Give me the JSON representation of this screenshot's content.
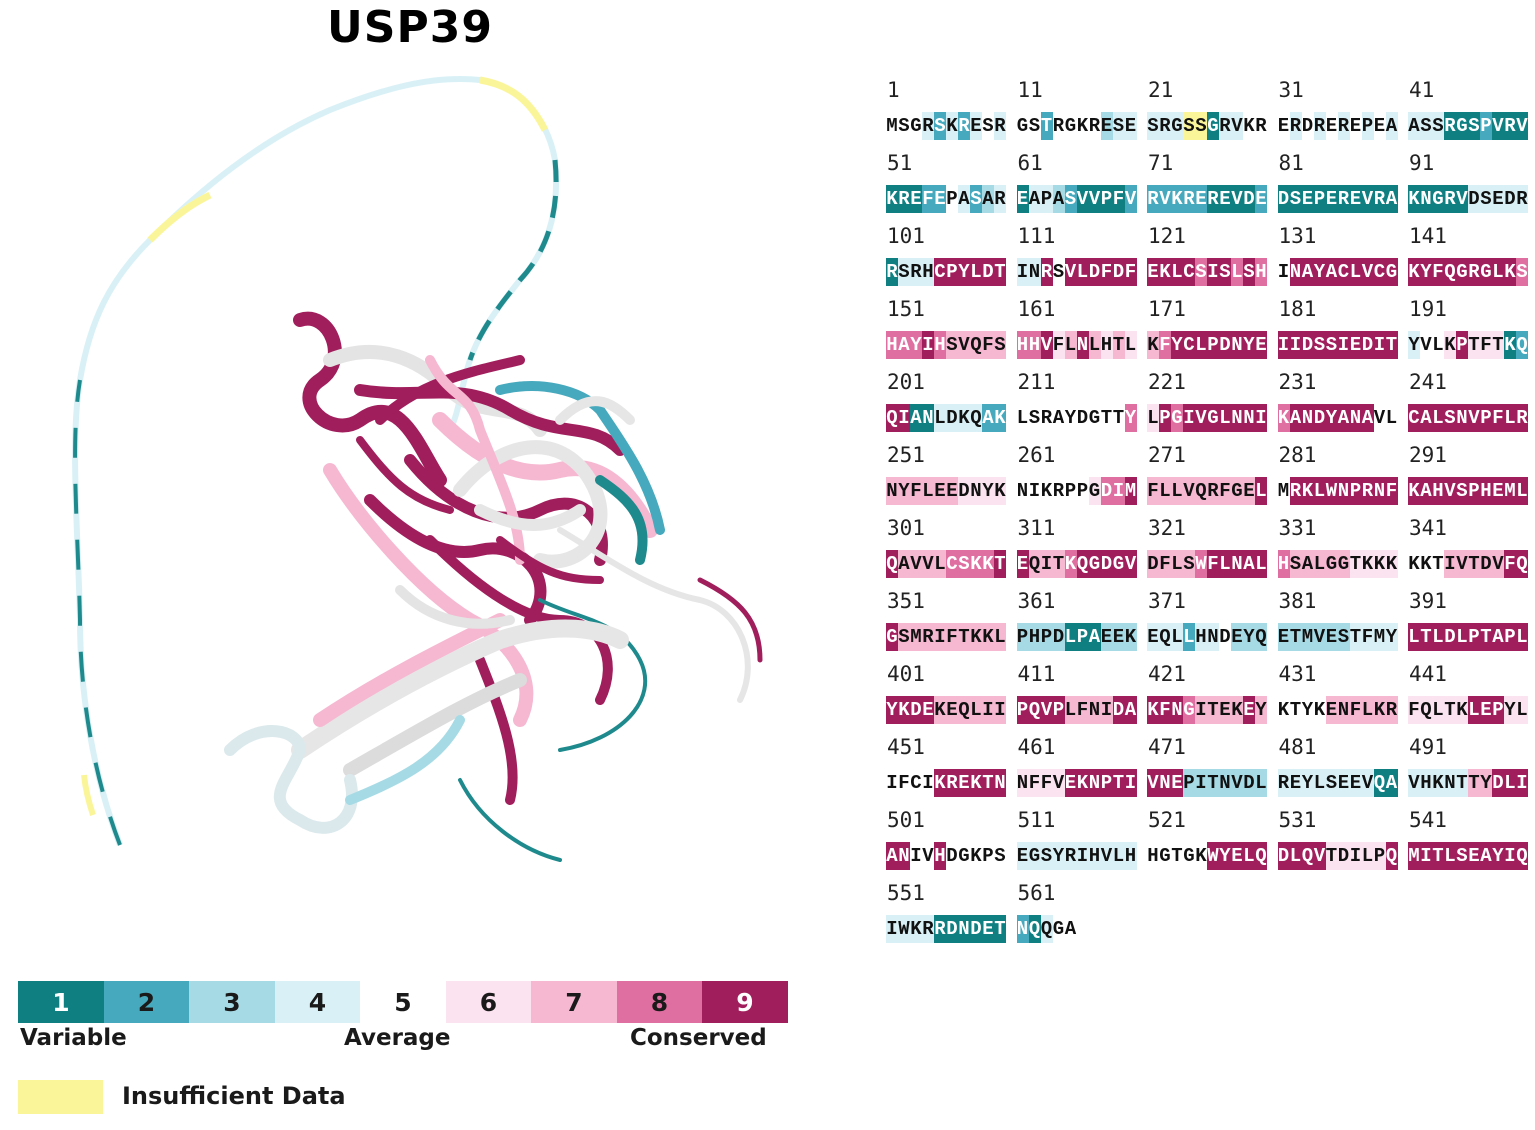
{
  "title": "USP39",
  "colors": {
    "1": "#0f7f82",
    "2": "#47a9bd",
    "3": "#a6dbe6",
    "4": "#d9f1f6",
    "5": "#ffffff",
    "6": "#fbe3ef",
    "7": "#f6b8d1",
    "8": "#e06fa1",
    "9": "#a11e5c",
    "insufficient": "#fbf59a"
  },
  "legend": {
    "scale": [
      "1",
      "2",
      "3",
      "4",
      "5",
      "6",
      "7",
      "8",
      "9"
    ],
    "variable_label": "Variable",
    "average_label": "Average",
    "conserved_label": "Conserved",
    "insufficient_label": "Insufficient Data"
  },
  "sequence_blocks": [
    {
      "start": "1",
      "seq": "MSGRSKRESR",
      "grades": "5554242454"
    },
    {
      "start": "11",
      "seq": "GSTRGKRESE",
      "grades": "5525555344"
    },
    {
      "start": "21",
      "seq": "SRGSSGRVKR",
      "grades": "444YY14455"
    },
    {
      "start": "31",
      "seq": "ERDREREPEA",
      "grades": "5454545454"
    },
    {
      "start": "41",
      "seq": "ASSRGSPVRV",
      "grades": "4441112111"
    },
    {
      "start": "51",
      "seq": "KREFEPASAR",
      "grades": "1112254234"
    },
    {
      "start": "61",
      "seq": "EAPASVVPFV",
      "grades": "1443211112"
    },
    {
      "start": "71",
      "seq": "RVKREREVDE",
      "grades": "2222211112"
    },
    {
      "start": "81",
      "seq": "DSEPEREVRA",
      "grades": "1111111111"
    },
    {
      "start": "91",
      "seq": "KNGRVDSEDR",
      "grades": "1111144444"
    },
    {
      "start": "101",
      "seq": "RSRHCPYLDT",
      "grades": "1444999999"
    },
    {
      "start": "111",
      "seq": "INRSVLDFDF",
      "grades": "4495999999"
    },
    {
      "start": "121",
      "seq": "EKLCSISLSH",
      "grades": "9999899898"
    },
    {
      "start": "131",
      "seq": "INAYACLVCG",
      "grades": "5999999999"
    },
    {
      "start": "141",
      "seq": "KYFQGRGLKS",
      "grades": "9999999998"
    },
    {
      "start": "151",
      "seq": "HAYIHSVQFS",
      "grades": "8889877777"
    },
    {
      "start": "161",
      "seq": "HHVFLNLHTL",
      "grades": "8896797676"
    },
    {
      "start": "171",
      "seq": "KFYCLPDNYE",
      "grades": "7899999999"
    },
    {
      "start": "181",
      "seq": "IIDSSIEDIT",
      "grades": "9999999999"
    },
    {
      "start": "191",
      "seq": "YVLKPTFTKQ",
      "grades": "4556966612"
    },
    {
      "start": "201",
      "seq": "QIANLDKQAK",
      "grades": "9911444422"
    },
    {
      "start": "211",
      "seq": "LSRAYDGTTY",
      "grades": "5555555558"
    },
    {
      "start": "221",
      "seq": "LPGIVGLNNI",
      "grades": "6989999999"
    },
    {
      "start": "231",
      "seq": "KANDYANAVL",
      "grades": "8999999955"
    },
    {
      "start": "241",
      "seq": "CALSNVPFLR",
      "grades": "9999999999"
    },
    {
      "start": "251",
      "seq": "NYFLEEDNYK",
      "grades": "7777776666"
    },
    {
      "start": "261",
      "seq": "NIKRPPGDIM",
      "grades": "5555556889"
    },
    {
      "start": "271",
      "seq": "FLLVQRFGEL",
      "grades": "7777777779"
    },
    {
      "start": "281",
      "seq": "MRKLWNPRNF",
      "grades": "5999999999"
    },
    {
      "start": "291",
      "seq": "KAHVSPHEML",
      "grades": "9999999999"
    },
    {
      "start": "301",
      "seq": "QAVVLCSKKT",
      "grades": "9777788889"
    },
    {
      "start": "311",
      "seq": "EQITKQGDGV",
      "grades": "9777899999"
    },
    {
      "start": "321",
      "seq": "DFLSWFLNAL",
      "grades": "7777899999"
    },
    {
      "start": "331",
      "seq": "HSALGGTKKK",
      "grades": "8777776666"
    },
    {
      "start": "341",
      "seq": "KKTIVTDVFQ",
      "grades": "5557777799"
    },
    {
      "start": "351",
      "seq": "GSMRIFTKKL",
      "grades": "9777777777"
    },
    {
      "start": "361",
      "seq": "PHPDLPAEEK",
      "grades": "3333111333"
    },
    {
      "start": "371",
      "seq": "EQLLHNDEYQ",
      "grades": "4442445333"
    },
    {
      "start": "381",
      "seq": "ETMVESTFMY",
      "grades": "3333334444"
    },
    {
      "start": "391",
      "seq": "LTLDLPTAPL",
      "grades": "9999999999"
    },
    {
      "start": "401",
      "seq": "YKDEKEQLII",
      "grades": "9999777777"
    },
    {
      "start": "411",
      "seq": "PQVPLFNIDA",
      "grades": "9999777799"
    },
    {
      "start": "421",
      "seq": "KFNGITEKEY",
      "grades": "9998777797"
    },
    {
      "start": "431",
      "seq": "KTYKENFLKR",
      "grades": "5555777777"
    },
    {
      "start": "441",
      "seq": "FQLTKLEPYL",
      "grades": "6666699966"
    },
    {
      "start": "451",
      "seq": "IFCIKREKTN",
      "grades": "5555999999"
    },
    {
      "start": "461",
      "seq": "NFFVEKNPTI",
      "grades": "6666999999"
    },
    {
      "start": "471",
      "seq": "VNEPITNVDL",
      "grades": "9993333333"
    },
    {
      "start": "481",
      "seq": "REYLSEEVQA",
      "grades": "4444444411"
    },
    {
      "start": "491",
      "seq": "VHKNTTYDLI",
      "grades": "4444477999"
    },
    {
      "start": "501",
      "seq": "ANIVHDGKPS",
      "grades": "9955955555"
    },
    {
      "start": "511",
      "seq": "EGSYRIHVLH",
      "grades": "4444444444"
    },
    {
      "start": "521",
      "seq": "HGTGKWYELQ",
      "grades": "5555599999"
    },
    {
      "start": "531",
      "seq": "DLQVTDILPQ",
      "grades": "9999666669"
    },
    {
      "start": "541",
      "seq": "MITLSEAYIQ",
      "grades": "9999999999"
    },
    {
      "start": "551",
      "seq": "IWKRRDNDET",
      "grades": "4444111111"
    },
    {
      "start": "561",
      "seq": "NQQGA",
      "grades": "21455"
    }
  ]
}
